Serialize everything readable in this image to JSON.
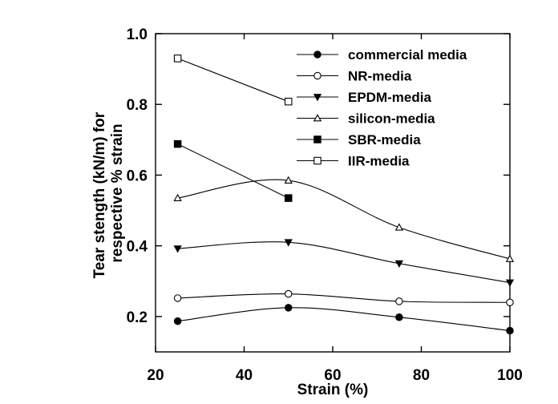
{
  "chart_data": {
    "type": "line",
    "title": "",
    "xlabel": "Strain (%)",
    "ylabel": [
      "Tear stength (kN/m) for",
      "respective % strain"
    ],
    "xlim": [
      20,
      100
    ],
    "ylim": [
      0.1,
      1.0
    ],
    "x_ticks": [
      20,
      40,
      60,
      80,
      100
    ],
    "y_ticks": [
      0.2,
      0.4,
      0.6,
      0.8,
      1.0
    ],
    "x_tick_labels": [
      "20",
      "40",
      "60",
      "80",
      "100"
    ],
    "y_tick_labels": [
      "0.2",
      "0.4",
      "0.6",
      "0.8",
      "1.0"
    ],
    "grid": false,
    "legend_position": "top-right",
    "series": [
      {
        "name": "commercial media",
        "marker": "filled-circle",
        "x": [
          25,
          50,
          75,
          100
        ],
        "y": [
          0.187,
          0.225,
          0.198,
          0.16
        ]
      },
      {
        "name": "NR-media",
        "marker": "open-circle",
        "x": [
          25,
          50,
          75,
          100
        ],
        "y": [
          0.252,
          0.264,
          0.243,
          0.24
        ]
      },
      {
        "name": "EPDM-media",
        "marker": "filled-triangle-down",
        "x": [
          25,
          50,
          75,
          100
        ],
        "y": [
          0.392,
          0.41,
          0.35,
          0.296
        ]
      },
      {
        "name": "silicon-media",
        "marker": "open-triangle-up",
        "x": [
          25,
          50,
          75,
          100
        ],
        "y": [
          0.535,
          0.585,
          0.452,
          0.363
        ]
      },
      {
        "name": "SBR-media",
        "marker": "filled-square",
        "x": [
          25,
          50
        ],
        "y": [
          0.688,
          0.535
        ]
      },
      {
        "name": "IIR-media",
        "marker": "open-square",
        "x": [
          25,
          50
        ],
        "y": [
          0.93,
          0.808
        ]
      }
    ]
  }
}
